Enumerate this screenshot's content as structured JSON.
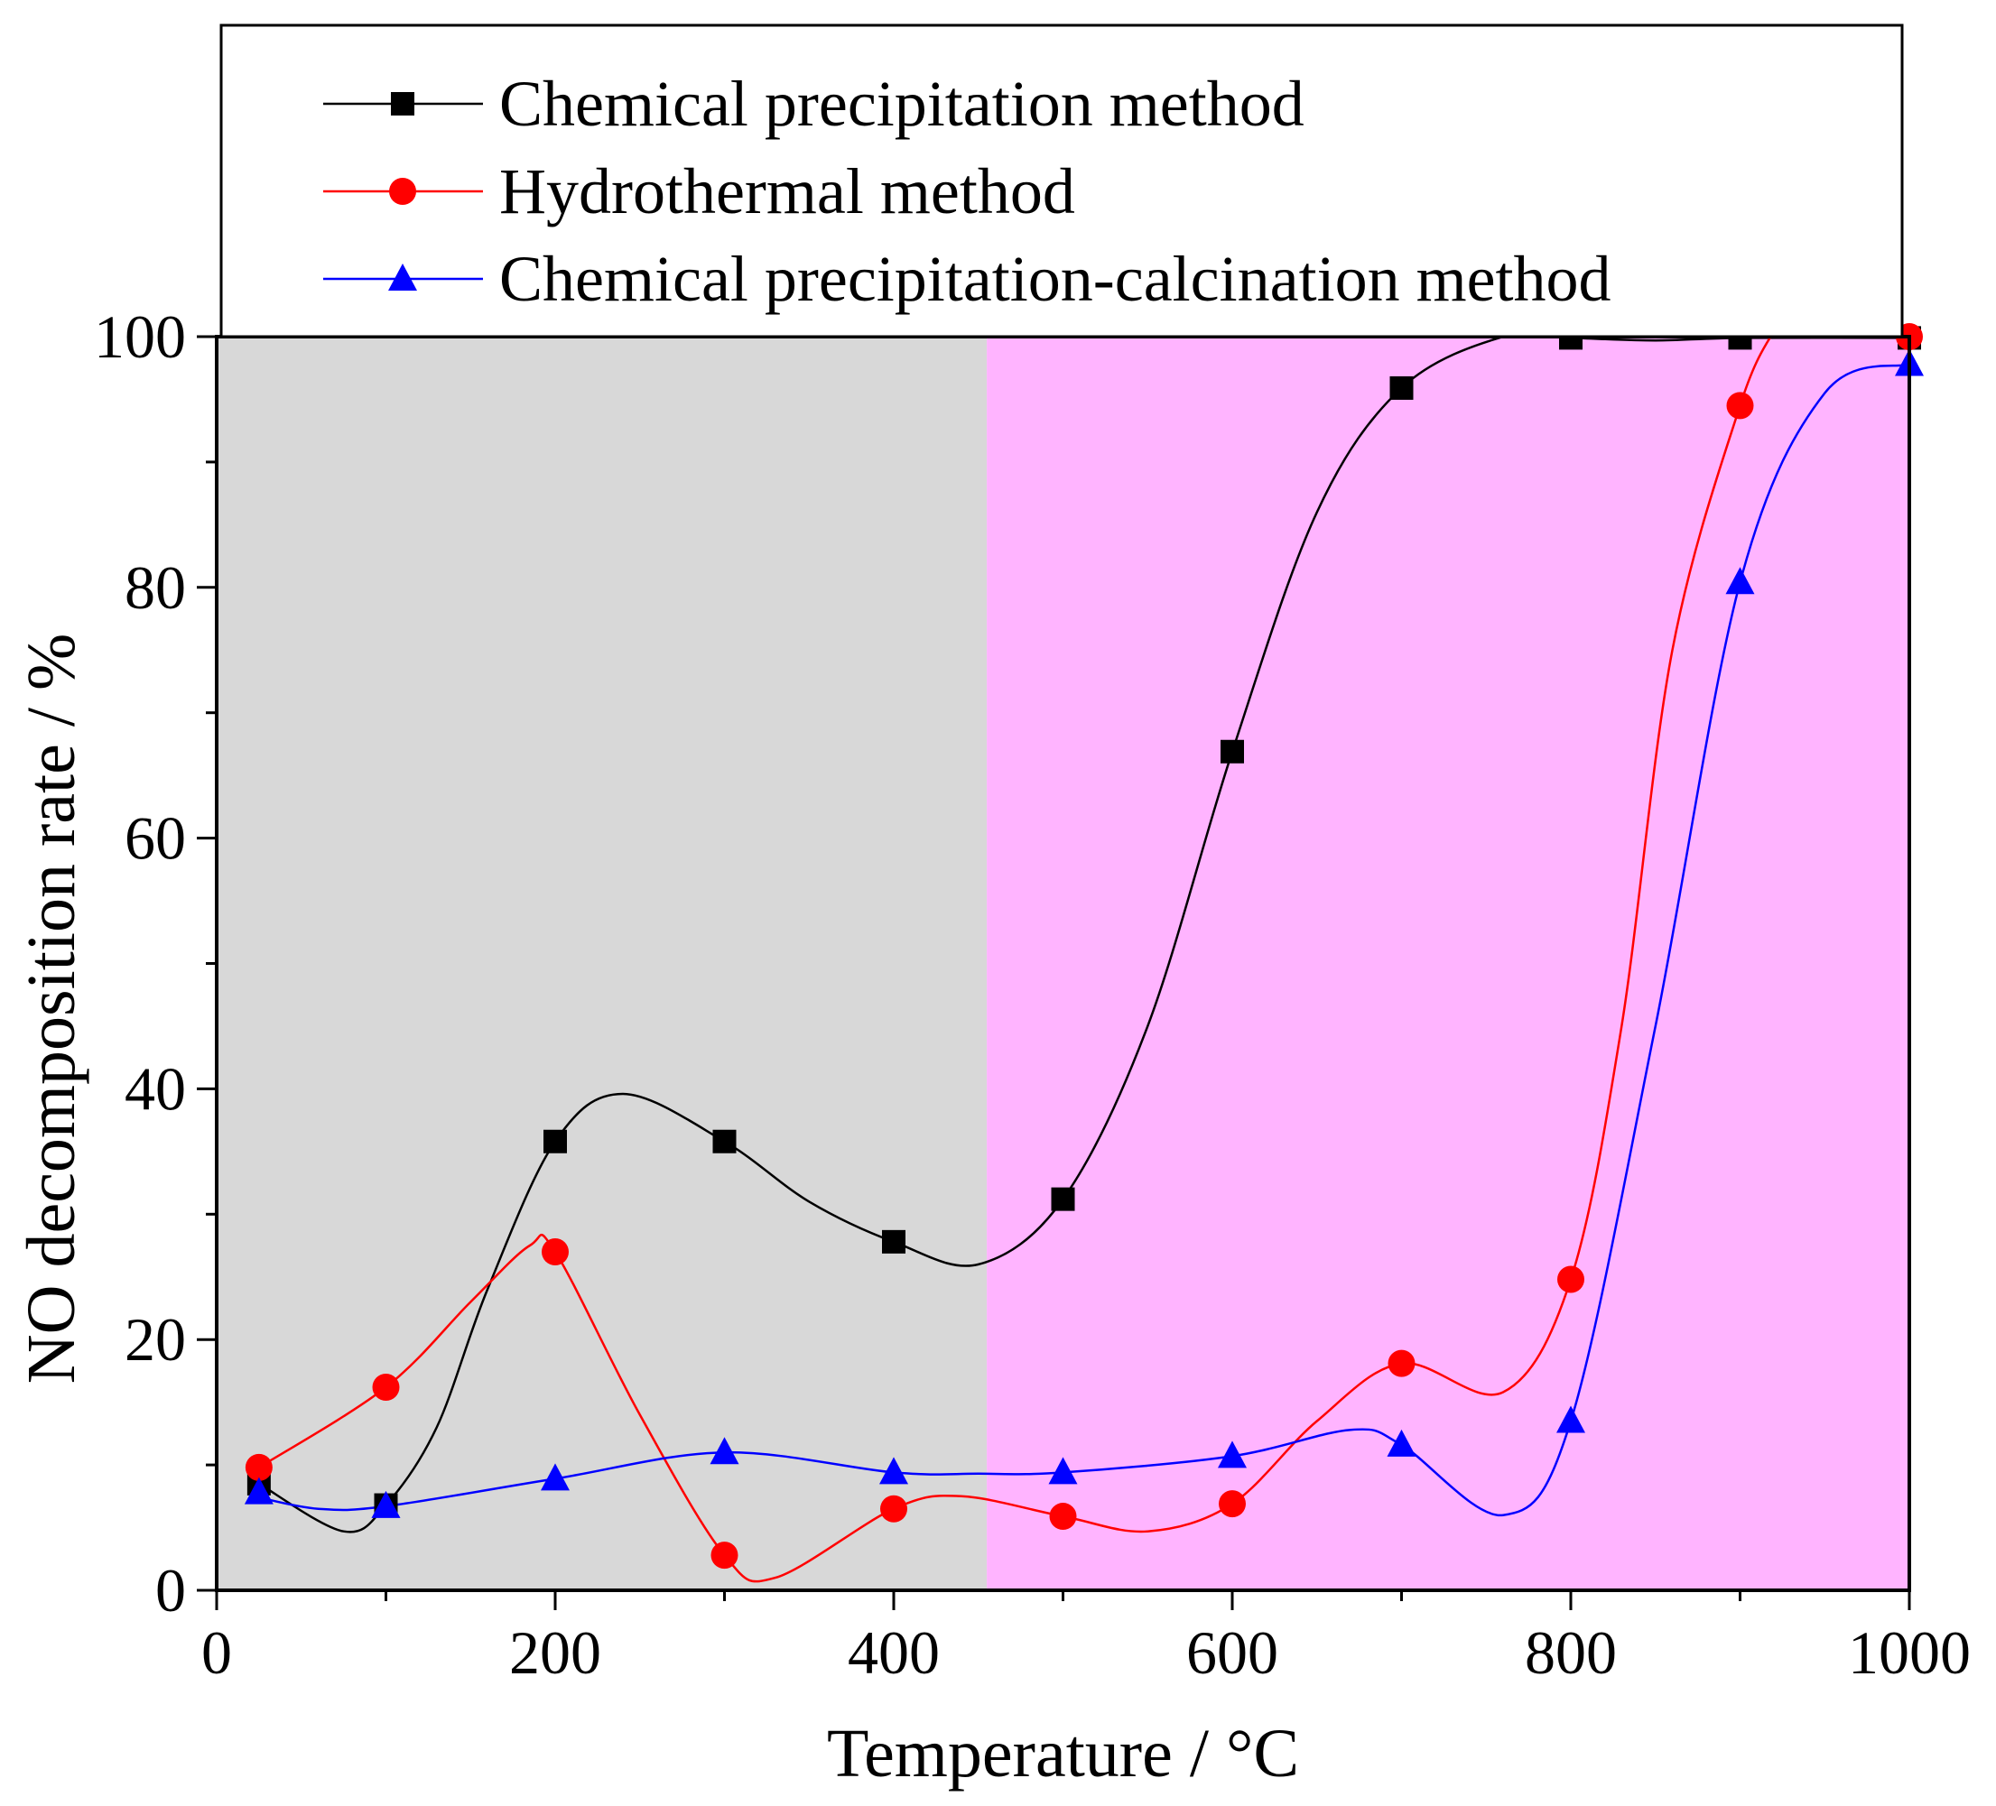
{
  "chart_data": {
    "type": "line",
    "title": "",
    "xlabel": "Temperature / °C",
    "ylabel": "NO decomposition rate / %",
    "xlim": [
      0,
      1000
    ],
    "ylim": [
      0,
      100
    ],
    "xticks": [
      "0",
      "200",
      "400",
      "600",
      "800",
      "1000"
    ],
    "yticks": [
      "0",
      "20",
      "40",
      "60",
      "80",
      "100"
    ],
    "x_minor_step": 100,
    "y_minor_step": 10,
    "legend_position": "top, above plot area",
    "background_regions": [
      {
        "x_from": 0,
        "x_to": 455,
        "color": "#d8d8d8"
      },
      {
        "x_from": 455,
        "x_to": 1000,
        "color": "#ffb4ff"
      }
    ],
    "series": [
      {
        "name": "Chemical precipitation method",
        "color": "#000000",
        "marker": "square",
        "x": [
          25,
          100,
          200,
          300,
          400,
          500,
          600,
          700,
          800,
          900,
          1000
        ],
        "y": [
          8.5,
          6.8,
          35.8,
          35.8,
          27.8,
          31.2,
          66.9,
          95.9,
          99.9,
          99.9,
          99.9
        ],
        "curve_x": [
          25,
          75,
          100,
          130,
          160,
          200,
          240,
          300,
          350,
          400,
          450,
          500,
          550,
          600,
          650,
          700,
          760,
          800,
          850,
          900,
          1000
        ],
        "curve_y": [
          8.5,
          4.7,
          6.8,
          13,
          24,
          35.8,
          39.6,
          35.8,
          31,
          27.8,
          26,
          31.2,
          45,
          66.9,
          86,
          95.9,
          100,
          99.9,
          99.7,
          99.9,
          99.9
        ]
      },
      {
        "name": "Hydrothermal method",
        "color": "#ff0000",
        "marker": "circle",
        "x": [
          25,
          100,
          200,
          300,
          400,
          500,
          600,
          700,
          800,
          900,
          1000
        ],
        "y": [
          9.8,
          16.2,
          27.0,
          2.8,
          6.5,
          5.9,
          6.9,
          18.1,
          24.8,
          94.5,
          100.0
        ],
        "curve_x": [
          25,
          100,
          150,
          185,
          200,
          250,
          300,
          330,
          400,
          440,
          500,
          550,
          600,
          650,
          700,
          760,
          800,
          830,
          860,
          900,
          920
        ],
        "curve_y": [
          9.8,
          16.2,
          23,
          27.5,
          27.0,
          14,
          2.8,
          1.0,
          6.5,
          7.5,
          5.9,
          4.7,
          6.9,
          13.5,
          18.1,
          15.8,
          24.8,
          45,
          75,
          94.5,
          100.5
        ]
      },
      {
        "name": "Chemical precipitation-calcination method",
        "color": "#0000ff",
        "marker": "triangle",
        "x": [
          25,
          100,
          200,
          300,
          400,
          500,
          600,
          700,
          800,
          900,
          1000
        ],
        "y": [
          7.8,
          6.7,
          8.9,
          11.0,
          9.4,
          9.4,
          10.7,
          11.6,
          13.5,
          80.4,
          97.8
        ],
        "curve_x": [
          25,
          60,
          100,
          200,
          300,
          400,
          450,
          500,
          600,
          670,
          700,
          760,
          800,
          850,
          900,
          950,
          1000
        ],
        "curve_y": [
          7.4,
          6.5,
          6.7,
          8.9,
          11.0,
          9.4,
          9.3,
          9.4,
          10.7,
          12.8,
          11.6,
          6.0,
          13.5,
          45,
          80.4,
          95.5,
          97.8
        ]
      }
    ]
  }
}
